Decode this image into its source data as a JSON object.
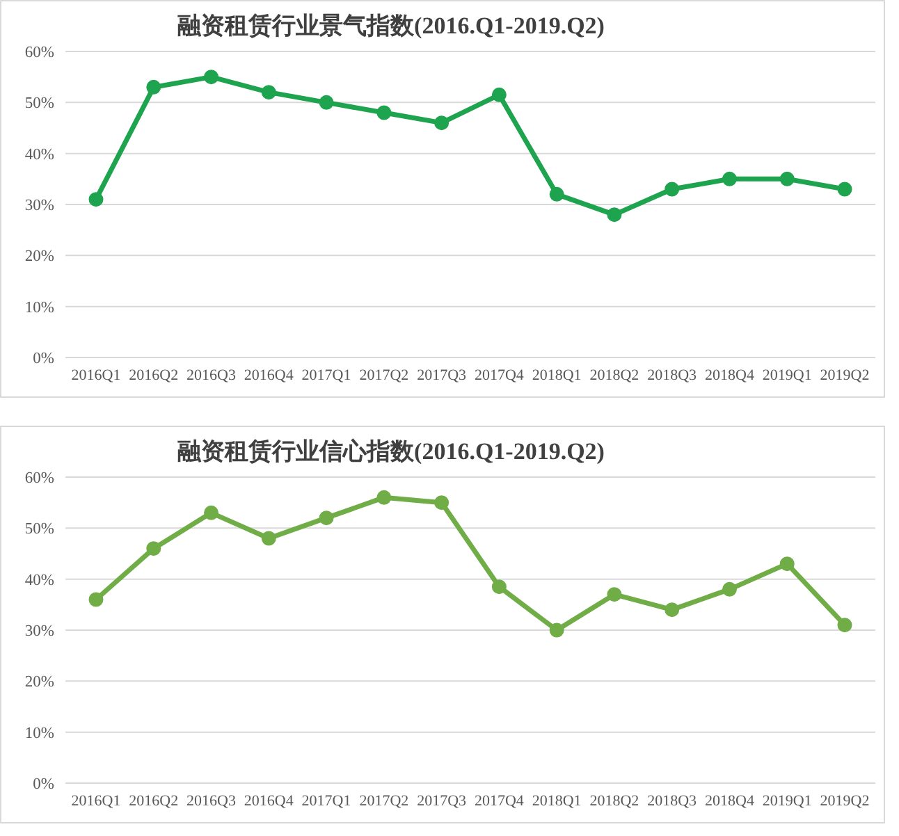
{
  "chart_data": [
    {
      "type": "line",
      "title": "融资租赁行业景气指数(2016.Q1-2019.Q2)",
      "categories": [
        "2016Q1",
        "2016Q2",
        "2016Q3",
        "2016Q4",
        "2017Q1",
        "2017Q2",
        "2017Q3",
        "2017Q4",
        "2018Q1",
        "2018Q2",
        "2018Q3",
        "2018Q4",
        "2019Q1",
        "2019Q2"
      ],
      "series": [
        {
          "color": "#1ea34f",
          "values": [
            31,
            53,
            55,
            52,
            50,
            48,
            46,
            51.5,
            32,
            28,
            33,
            35,
            35,
            33
          ]
        }
      ],
      "ylim": [
        0,
        60
      ],
      "yticks": [
        {
          "value": 0,
          "label": "0%"
        },
        {
          "value": 10,
          "label": "10%"
        },
        {
          "value": 20,
          "label": "20%"
        },
        {
          "value": 30,
          "label": "30%"
        },
        {
          "value": 40,
          "label": "40%"
        },
        {
          "value": 50,
          "label": "50%"
        },
        {
          "value": 60,
          "label": "60%"
        }
      ],
      "grid": "y",
      "legend": false,
      "marker": "circle",
      "line_style": "solid"
    },
    {
      "type": "line",
      "title": "融资租赁行业信心指数(2016.Q1-2019.Q2)",
      "categories": [
        "2016Q1",
        "2016Q2",
        "2016Q3",
        "2016Q4",
        "2017Q1",
        "2017Q2",
        "2017Q3",
        "2017Q4",
        "2018Q1",
        "2018Q2",
        "2018Q3",
        "2018Q4",
        "2019Q1",
        "2019Q2"
      ],
      "series": [
        {
          "color": "#70ad47",
          "values": [
            36,
            46,
            53,
            48,
            52,
            56,
            55,
            38.5,
            30,
            37,
            34,
            38,
            43,
            31
          ]
        }
      ],
      "ylim": [
        0,
        60
      ],
      "yticks": [
        {
          "value": 0,
          "label": "0%"
        },
        {
          "value": 10,
          "label": "10%"
        },
        {
          "value": 20,
          "label": "20%"
        },
        {
          "value": 30,
          "label": "30%"
        },
        {
          "value": 40,
          "label": "40%"
        },
        {
          "value": 50,
          "label": "50%"
        },
        {
          "value": 60,
          "label": "60%"
        }
      ],
      "grid": "y",
      "legend": false,
      "marker": "circle",
      "line_style": "solid"
    }
  ]
}
